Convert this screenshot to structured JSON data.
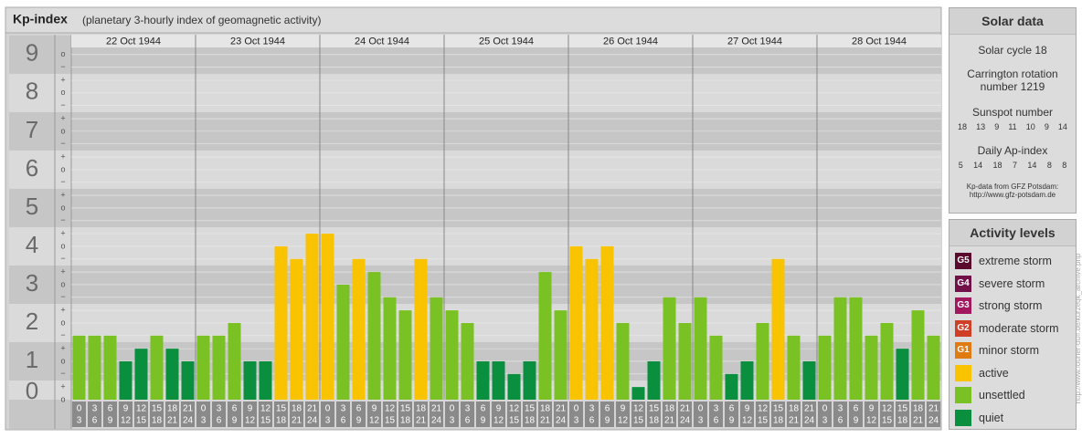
{
  "chart_data": {
    "type": "bar",
    "title": "Kp-index",
    "subtitle": "(planetary 3-hourly index of geomagnetic activity)",
    "days": [
      "22 Oct 1944",
      "23 Oct 1944",
      "24 Oct 1944",
      "25 Oct 1944",
      "26 Oct 1944",
      "27 Oct 1944",
      "28 Oct 1944"
    ],
    "hours": [
      0,
      3,
      6,
      9,
      12,
      15,
      18,
      21,
      24
    ],
    "values": [
      1.67,
      1.67,
      1.67,
      1,
      1.33,
      1.67,
      1.33,
      1,
      1.67,
      1.67,
      2,
      1,
      1,
      4,
      3.67,
      4.33,
      4.33,
      3,
      3.67,
      3.33,
      2.67,
      2.33,
      3.67,
      2.67,
      2.33,
      2,
      1,
      1,
      0.67,
      1,
      3.33,
      2.33,
      4,
      3.67,
      4,
      2,
      0.33,
      1,
      2.67,
      2,
      2.67,
      1.67,
      0.67,
      1,
      2,
      3.67,
      1.67,
      1,
      1.67,
      2.67,
      2.67,
      1.67,
      2,
      1.33,
      2.33,
      1.67
    ],
    "colors": [
      "#7ac223",
      "#7ac223",
      "#7ac223",
      "#0a8f3f",
      "#0a8f3f",
      "#7ac223",
      "#0a8f3f",
      "#0a8f3f",
      "#7ac223",
      "#7ac223",
      "#7ac223",
      "#0a8f3f",
      "#0a8f3f",
      "#f9c300",
      "#f9c300",
      "#f9c300",
      "#f9c300",
      "#7ac223",
      "#f9c300",
      "#7ac223",
      "#7ac223",
      "#7ac223",
      "#f9c300",
      "#7ac223",
      "#7ac223",
      "#7ac223",
      "#0a8f3f",
      "#0a8f3f",
      "#0a8f3f",
      "#0a8f3f",
      "#7ac223",
      "#7ac223",
      "#f9c300",
      "#f9c300",
      "#f9c300",
      "#7ac223",
      "#0a8f3f",
      "#0a8f3f",
      "#7ac223",
      "#7ac223",
      "#7ac223",
      "#7ac223",
      "#0a8f3f",
      "#0a8f3f",
      "#7ac223",
      "#f9c300",
      "#7ac223",
      "#0a8f3f",
      "#7ac223",
      "#7ac223",
      "#7ac223",
      "#7ac223",
      "#7ac223",
      "#0a8f3f",
      "#7ac223",
      "#7ac223"
    ],
    "ylim": [
      0,
      9.52
    ],
    "yticks": [
      0,
      1,
      2,
      3,
      4,
      5,
      6,
      7,
      8,
      9
    ],
    "yminorticks": [
      {
        "value": 0,
        "label": "o"
      },
      {
        "value": 0.33,
        "label": "+"
      },
      {
        "value": 0.67,
        "label": "−"
      },
      {
        "value": 1,
        "label": "o"
      },
      {
        "value": 1.33,
        "label": "+"
      },
      {
        "value": 1.67,
        "label": "−"
      },
      {
        "value": 2,
        "label": "o"
      },
      {
        "value": 2.33,
        "label": "+"
      },
      {
        "value": 2.67,
        "label": "−"
      },
      {
        "value": 3,
        "label": "o"
      },
      {
        "value": 3.33,
        "label": "+"
      },
      {
        "value": 3.67,
        "label": "−"
      },
      {
        "value": 4,
        "label": "o"
      },
      {
        "value": 4.33,
        "label": "+"
      },
      {
        "value": 4.67,
        "label": "−"
      },
      {
        "value": 5,
        "label": "o"
      },
      {
        "value": 5.33,
        "label": "+"
      },
      {
        "value": 5.67,
        "label": "−"
      },
      {
        "value": 6,
        "label": "o"
      },
      {
        "value": 6.33,
        "label": "+"
      },
      {
        "value": 6.67,
        "label": "−"
      },
      {
        "value": 7,
        "label": "o"
      },
      {
        "value": 7.33,
        "label": "+"
      },
      {
        "value": 7.67,
        "label": "−"
      },
      {
        "value": 8,
        "label": "o"
      },
      {
        "value": 8.33,
        "label": "+"
      },
      {
        "value": 8.67,
        "label": "−"
      },
      {
        "value": 9,
        "label": "o"
      }
    ],
    "grid": true
  },
  "solar_data": {
    "title": "Solar data",
    "solar_cycle": "Solar cycle 18",
    "carrington": "Carrington rotation number 1219",
    "sunspot_title": "Sunspot number",
    "sunspot_numbers": [
      18,
      13,
      9,
      11,
      10,
      9,
      14
    ],
    "ap_title": "Daily Ap-index",
    "ap_values": [
      5,
      14,
      18,
      7,
      14,
      8,
      8
    ],
    "source": "Kp-data from GFZ Potsdam:",
    "source_url": "http://www.gfz-potsdam.de"
  },
  "activity_levels": {
    "title": "Activity levels",
    "items": [
      {
        "badge": "G5",
        "name": "extreme storm",
        "color": "#5a0a2c"
      },
      {
        "badge": "G4",
        "name": "severe storm",
        "color": "#72104a"
      },
      {
        "badge": "G3",
        "name": "strong storm",
        "color": "#a3175e"
      },
      {
        "badge": "G2",
        "name": "moderate storm",
        "color": "#cf3f26"
      },
      {
        "badge": "G1",
        "name": "minor storm",
        "color": "#e07b12"
      },
      {
        "name": "active",
        "color": "#f9c300"
      },
      {
        "name": "unsettled",
        "color": "#7ac223"
      },
      {
        "name": "quiet",
        "color": "#0a8f3f"
      }
    ]
  },
  "watermark": "http://www.fourier-duff.de/kurzeqk_archive.php"
}
